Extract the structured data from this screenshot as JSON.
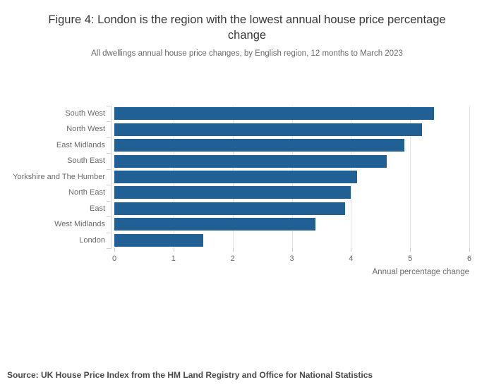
{
  "chart_data": {
    "type": "bar",
    "orientation": "horizontal",
    "title": "Figure 4: London is the region with the lowest annual house price percentage change",
    "subtitle": "All dwellings annual house price changes, by English region, 12 months to March 2023",
    "categories": [
      "South West",
      "North West",
      "East Midlands",
      "South East",
      "Yorkshire and The Humber",
      "North East",
      "East",
      "West Midlands",
      "London"
    ],
    "values": [
      5.4,
      5.2,
      4.9,
      4.6,
      4.1,
      4.0,
      3.9,
      3.4,
      1.5
    ],
    "xlabel": "Annual percentage change",
    "xlim": [
      0,
      6
    ],
    "xticks": [
      0,
      1,
      2,
      3,
      4,
      5,
      6
    ],
    "grid": true,
    "legend": false,
    "source": "Source: UK House Price Index from the HM Land Registry and Office for National Statistics"
  },
  "colors": {
    "bar": "#206095",
    "gridline": "#e6e6e6",
    "y_axis": "#ccd4e3",
    "x_tick": "#c9c9c9",
    "title_text": "#383838",
    "muted_text": "#6b6b6b",
    "source_text": "#4a4a4a"
  }
}
